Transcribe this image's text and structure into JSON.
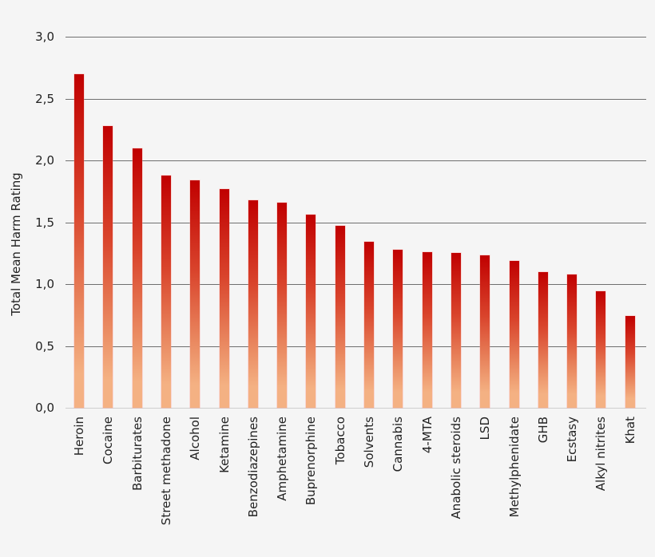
{
  "chart_data": {
    "type": "bar",
    "title": "",
    "xlabel": "",
    "ylabel": "Total Mean Harm Rating",
    "ylim": [
      0,
      3.0
    ],
    "yticks": [
      "0,0",
      "0,5",
      "1,0",
      "1,5",
      "2,0",
      "2,5",
      "3,0"
    ],
    "ytick_values": [
      0,
      0.5,
      1.0,
      1.5,
      2.0,
      2.5,
      3.0
    ],
    "grid": true,
    "legend": null,
    "bar_gradient": {
      "top": "#c00000",
      "bottom": "#f4b183"
    },
    "categories": [
      "Heroin",
      "Cocaine",
      "Barbiturates",
      "Street methadone",
      "Alcohol",
      "Ketamine",
      "Benzodiazepines",
      "Amphetamine",
      "Buprenorphine",
      "Tobacco",
      "Solvents",
      "Cannabis",
      "4-MTA",
      "Anabolic steroids",
      "LSD",
      "Methylphenidate",
      "GHB",
      "Ecstasy",
      "Alkyl nitrites",
      "Khat"
    ],
    "values": [
      2.7,
      2.28,
      2.1,
      1.88,
      1.84,
      1.77,
      1.68,
      1.66,
      1.56,
      1.47,
      1.34,
      1.28,
      1.26,
      1.25,
      1.23,
      1.19,
      1.1,
      1.08,
      0.94,
      0.74
    ]
  }
}
